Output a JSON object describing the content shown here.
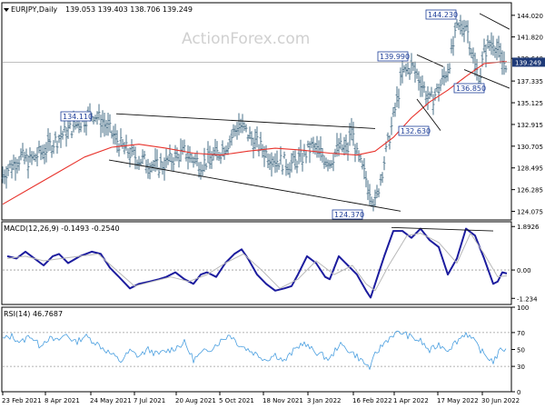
{
  "header": {
    "title": "EURJPY,Daily",
    "ohlc": "139.053 139.403 138.706 139.249"
  },
  "watermark": "ActionForex.com",
  "colors": {
    "price_bars": "#4a7088",
    "moving_average": "#e8332c",
    "trendlines": "#111111",
    "macd": "#1c1c9e",
    "signal": "#b8b8b8",
    "rsi": "#4a9fe0",
    "label_border": "#1f3f99",
    "current_price_bg": "#1e3a78"
  },
  "chart_data": [
    {
      "type": "line",
      "name": "price",
      "title": "EURJPY,Daily",
      "ylim": [
        123.2,
        145.3
      ],
      "y_ticks": [
        "144.020",
        "141.820",
        "139.640",
        "137.335",
        "135.125",
        "132.915",
        "130.705",
        "128.495",
        "126.285",
        "124.075"
      ],
      "y_tick_values": [
        144.02,
        141.82,
        139.64,
        137.335,
        135.125,
        132.915,
        130.705,
        128.495,
        126.285,
        124.075
      ],
      "current_price": "139.249",
      "current_price_value": 139.249,
      "series": [
        {
          "name": "EURJPY",
          "x_index": [
            0,
            10,
            20,
            30,
            40,
            50,
            60,
            70,
            80,
            90,
            100,
            110,
            120,
            130,
            140,
            150,
            160,
            170,
            180,
            190,
            200,
            210,
            220,
            230,
            240,
            250,
            260,
            270,
            280,
            290,
            300,
            310,
            320,
            330,
            340,
            350,
            360,
            370,
            380,
            384,
            390,
            400,
            410,
            420,
            430,
            440,
            450,
            460,
            470,
            480,
            490,
            500,
            510,
            520,
            525,
            530,
            540,
            550,
            555
          ],
          "values": [
            127.8,
            128.8,
            129.6,
            129.2,
            129.9,
            130.6,
            131.4,
            132.2,
            132.8,
            133.5,
            134.0,
            133.2,
            132.0,
            130.8,
            130.0,
            129.4,
            129.0,
            128.6,
            129.0,
            129.6,
            130.1,
            129.4,
            128.9,
            129.6,
            130.2,
            131.3,
            133.0,
            131.9,
            130.9,
            130.0,
            129.4,
            129.0,
            128.9,
            129.6,
            130.6,
            130.0,
            129.1,
            130.6,
            130.4,
            132.6,
            129.7,
            127.4,
            124.8,
            129.2,
            133.5,
            138.0,
            138.8,
            137.4,
            135.2,
            136.5,
            138.6,
            142.5,
            143.2,
            138.8,
            137.5,
            140.3,
            141.5,
            139.2,
            139.25
          ]
        },
        {
          "name": "moving average",
          "x_index": [
            0,
            30,
            60,
            90,
            120,
            150,
            180,
            210,
            240,
            270,
            300,
            330,
            360,
            390,
            410,
            430,
            450,
            470,
            490,
            510,
            530,
            550,
            555
          ],
          "values": [
            124.8,
            126.4,
            128.0,
            129.6,
            130.6,
            130.9,
            130.5,
            130.0,
            129.8,
            130.2,
            130.5,
            130.3,
            130.0,
            129.8,
            130.2,
            131.6,
            133.6,
            135.2,
            136.4,
            137.8,
            139.1,
            139.3,
            139.3
          ]
        }
      ],
      "annotations": [
        {
          "label": "144.230",
          "value": 144.23
        },
        {
          "label": "139.990",
          "value": 139.99
        },
        {
          "label": "136.850",
          "value": 136.85
        },
        {
          "label": "134.110",
          "value": 134.11
        },
        {
          "label": "132.630",
          "value": 132.63
        },
        {
          "label": "124.370",
          "value": 124.37
        }
      ],
      "trendlines": [
        {
          "from": [
            125,
            134.0
          ],
          "to": [
            410,
            132.5
          ]
        },
        {
          "from": [
            117,
            129.3
          ],
          "to": [
            438,
            124.1
          ]
        },
        {
          "from": [
            456,
            140.0
          ],
          "to": [
            485,
            138.8
          ]
        },
        {
          "from": [
            456,
            135.5
          ],
          "to": [
            482,
            132.3
          ]
        },
        {
          "from": [
            525,
            144.2
          ],
          "to": [
            558,
            142.6
          ]
        },
        {
          "from": [
            508,
            138.5
          ],
          "to": [
            558,
            136.6
          ]
        }
      ]
    },
    {
      "type": "line",
      "name": "macd",
      "title": "MACD(12,26,9) -0.1493 -0.2540",
      "ylim": [
        -1.5,
        2.1
      ],
      "y_ticks": [
        "1.8926",
        "0.00",
        "-1.234"
      ],
      "y_tick_values": [
        1.8926,
        0.0,
        -1.234
      ],
      "series": [
        {
          "name": "MACD",
          "x_index": [
            5,
            15,
            25,
            35,
            45,
            55,
            62,
            72,
            85,
            98,
            108,
            118,
            128,
            140,
            150,
            162,
            172,
            180,
            190,
            200,
            210,
            218,
            225,
            235,
            245,
            255,
            263,
            270,
            280,
            290,
            300,
            310,
            318,
            325,
            335,
            345,
            355,
            360,
            370,
            380,
            390,
            400,
            405,
            410,
            420,
            430,
            440,
            450,
            460,
            470,
            480,
            490,
            500,
            510,
            520,
            530,
            540,
            545,
            550,
            555
          ],
          "values": [
            0.6,
            0.5,
            0.8,
            0.5,
            0.2,
            0.6,
            0.7,
            0.3,
            0.6,
            0.8,
            0.7,
            0.1,
            -0.3,
            -0.8,
            -0.6,
            -0.5,
            -0.4,
            -0.3,
            -0.1,
            -0.4,
            -0.6,
            -0.2,
            -0.1,
            -0.3,
            0.3,
            0.7,
            0.9,
            0.5,
            -0.2,
            -0.6,
            -0.9,
            -0.8,
            -0.7,
            -0.2,
            0.6,
            0.3,
            -0.3,
            -0.4,
            0.6,
            0.2,
            -0.2,
            -0.9,
            -1.2,
            -0.6,
            0.6,
            1.7,
            1.7,
            1.4,
            1.8,
            1.3,
            1.0,
            -0.2,
            0.5,
            1.8,
            1.5,
            0.5,
            -0.6,
            -0.5,
            -0.1,
            -0.15
          ]
        },
        {
          "name": "signal",
          "x_index": [
            5,
            25,
            45,
            65,
            85,
            105,
            125,
            145,
            165,
            185,
            205,
            225,
            245,
            265,
            285,
            305,
            325,
            345,
            365,
            385,
            400,
            410,
            425,
            445,
            460,
            480,
            500,
            515,
            530,
            545,
            555
          ],
          "values": [
            0.5,
            0.6,
            0.4,
            0.5,
            0.6,
            0.7,
            0.0,
            -0.7,
            -0.5,
            -0.3,
            -0.5,
            -0.2,
            0.3,
            0.7,
            0.0,
            -0.8,
            -0.4,
            0.4,
            -0.2,
            0.2,
            -0.6,
            -0.9,
            0.2,
            1.5,
            1.6,
            1.2,
            0.3,
            1.6,
            0.7,
            -0.3,
            -0.25
          ]
        }
      ],
      "trendlines": [
        {
          "from": [
            428,
            1.85
          ],
          "to": [
            540,
            1.7
          ]
        }
      ]
    },
    {
      "type": "line",
      "name": "rsi",
      "title": "RSI(14) 46.7687",
      "ylim": [
        0,
        100
      ],
      "y_ticks": [
        "100",
        "70",
        "50",
        "30",
        "0"
      ],
      "y_tick_values": [
        100,
        70,
        50,
        30,
        0
      ],
      "levels": [
        70,
        30
      ],
      "series": [
        {
          "name": "RSI",
          "x_index": [
            0,
            10,
            20,
            30,
            40,
            50,
            60,
            70,
            80,
            90,
            100,
            110,
            120,
            130,
            140,
            150,
            160,
            170,
            180,
            190,
            200,
            210,
            220,
            230,
            240,
            250,
            260,
            270,
            280,
            290,
            300,
            310,
            320,
            330,
            340,
            350,
            360,
            370,
            380,
            390,
            400,
            405,
            410,
            420,
            430,
            440,
            450,
            460,
            470,
            480,
            490,
            500,
            510,
            520,
            530,
            540,
            550,
            555
          ],
          "values": [
            62,
            66,
            58,
            67,
            55,
            63,
            60,
            68,
            58,
            66,
            60,
            52,
            44,
            36,
            48,
            42,
            50,
            44,
            48,
            52,
            58,
            38,
            46,
            52,
            60,
            68,
            56,
            50,
            44,
            38,
            44,
            36,
            48,
            58,
            50,
            44,
            38,
            56,
            50,
            42,
            32,
            28,
            44,
            58,
            68,
            70,
            64,
            60,
            48,
            56,
            50,
            60,
            70,
            58,
            44,
            36,
            52,
            47
          ]
        }
      ]
    }
  ],
  "x_axis_labels": [
    "23 Feb 2021",
    "8 Apr 2021",
    "24 May 2021",
    "7 Jul 2021",
    "20 Aug 2021",
    "5 Oct 2021",
    "18 Nov 2021",
    "3 Jan 2022",
    "16 Feb 2022",
    "1 Apr 2022",
    "17 May 2022",
    "30 Jun 2022"
  ]
}
